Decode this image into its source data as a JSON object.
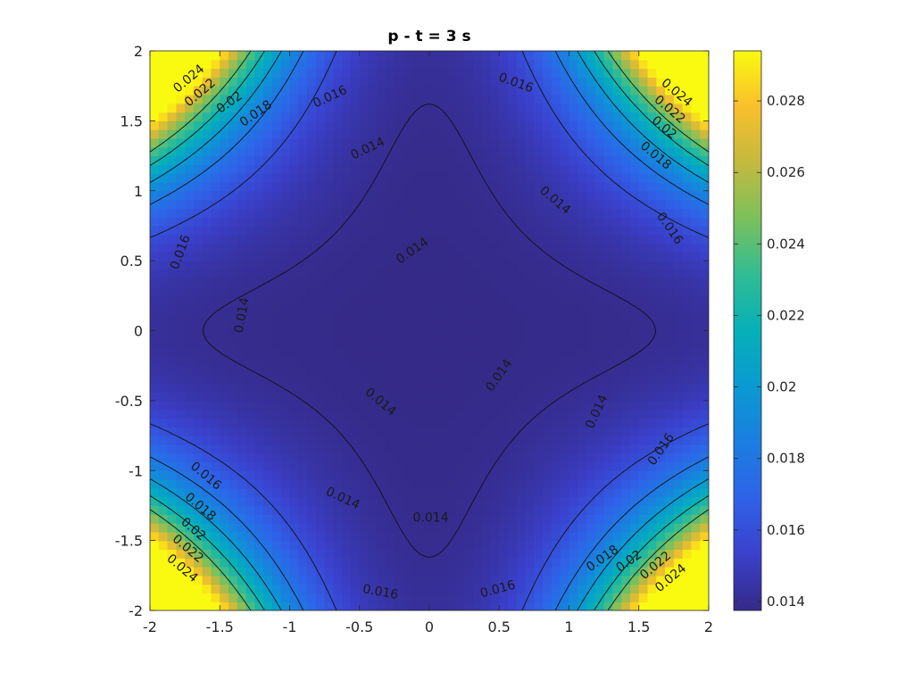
{
  "chart_data": {
    "type": "heatmap",
    "title": "p - t = 3 s",
    "xlabel": "",
    "ylabel": "",
    "xlim": [
      -2,
      2
    ],
    "ylim": [
      -2,
      2
    ],
    "x_ticks": [
      -2,
      -1.5,
      -1,
      -0.5,
      0,
      0.5,
      1,
      1.5,
      2
    ],
    "y_ticks": [
      -2,
      -1.5,
      -1,
      -0.5,
      0,
      0.5,
      1,
      1.5,
      2
    ],
    "x_tick_labels": [
      "-2",
      "-1.5",
      "-1",
      "-0.5",
      "0",
      "0.5",
      "1",
      "1.5",
      "2"
    ],
    "y_tick_labels": [
      "-2",
      "-1.5",
      "-1",
      "-0.5",
      "0",
      "0.5",
      "1",
      "1.5",
      "2"
    ],
    "colormap": "parula",
    "color_range": [
      0.01375,
      0.0294
    ],
    "colorbar": {
      "position": "right",
      "ticks": [
        0.014,
        0.016,
        0.018,
        0.02,
        0.022,
        0.024,
        0.026,
        0.028
      ],
      "tick_labels": [
        "0.014",
        "0.016",
        "0.018",
        "0.02",
        "0.022",
        "0.024",
        "0.026",
        "0.028"
      ]
    },
    "contour_levels": [
      0.014,
      0.016,
      0.018,
      0.02,
      0.022,
      0.024
    ],
    "contour_labels": [
      {
        "text": "0.024",
        "x": -1.72,
        "y": 1.8,
        "angle": -40
      },
      {
        "text": "0.022",
        "x": -1.64,
        "y": 1.7,
        "angle": -40
      },
      {
        "text": "0.02",
        "x": -1.43,
        "y": 1.63,
        "angle": -35
      },
      {
        "text": "0.018",
        "x": -1.24,
        "y": 1.55,
        "angle": -35
      },
      {
        "text": "0.016",
        "x": -0.71,
        "y": 1.67,
        "angle": -25
      },
      {
        "text": "0.016",
        "x": 0.62,
        "y": 1.77,
        "angle": 20
      },
      {
        "text": "0.024",
        "x": 1.77,
        "y": 1.7,
        "angle": 40
      },
      {
        "text": "0.022",
        "x": 1.72,
        "y": 1.58,
        "angle": 40
      },
      {
        "text": "0.02",
        "x": 1.68,
        "y": 1.45,
        "angle": 40
      },
      {
        "text": "0.018",
        "x": 1.62,
        "y": 1.25,
        "angle": 40
      },
      {
        "text": "0.014",
        "x": -0.44,
        "y": 1.3,
        "angle": -25
      },
      {
        "text": "0.014",
        "x": 0.9,
        "y": 0.93,
        "angle": 40
      },
      {
        "text": "0.016",
        "x": 1.72,
        "y": 0.73,
        "angle": 55
      },
      {
        "text": "0.016",
        "x": -1.78,
        "y": 0.56,
        "angle": -70
      },
      {
        "text": "0.014",
        "x": -0.12,
        "y": 0.57,
        "angle": -35
      },
      {
        "text": "0.014",
        "x": -1.34,
        "y": 0.11,
        "angle": -80
      },
      {
        "text": "0.014",
        "x": 0.5,
        "y": -0.32,
        "angle": -55
      },
      {
        "text": "0.014",
        "x": -0.35,
        "y": -0.51,
        "angle": 40
      },
      {
        "text": "0.014",
        "x": 1.2,
        "y": -0.58,
        "angle": -65
      },
      {
        "text": "0.016",
        "x": 1.66,
        "y": -0.85,
        "angle": -55
      },
      {
        "text": "0.016",
        "x": -1.6,
        "y": -1.04,
        "angle": 40
      },
      {
        "text": "0.018",
        "x": -1.64,
        "y": -1.26,
        "angle": 40
      },
      {
        "text": "0.02",
        "x": -1.69,
        "y": -1.42,
        "angle": 40
      },
      {
        "text": "0.022",
        "x": -1.73,
        "y": -1.56,
        "angle": 40
      },
      {
        "text": "0.024",
        "x": -1.77,
        "y": -1.7,
        "angle": 40
      },
      {
        "text": "0.014",
        "x": -0.62,
        "y": -1.2,
        "angle": 25
      },
      {
        "text": "0.014",
        "x": 0.01,
        "y": -1.34,
        "angle": 0
      },
      {
        "text": "0.016",
        "x": -0.35,
        "y": -1.87,
        "angle": 10
      },
      {
        "text": "0.016",
        "x": 0.49,
        "y": -1.85,
        "angle": -15
      },
      {
        "text": "0.018",
        "x": 1.24,
        "y": -1.63,
        "angle": -35
      },
      {
        "text": "0.02",
        "x": 1.43,
        "y": -1.65,
        "angle": -35
      },
      {
        "text": "0.022",
        "x": 1.62,
        "y": -1.68,
        "angle": -40
      },
      {
        "text": "0.024",
        "x": 1.73,
        "y": -1.77,
        "angle": -40
      }
    ]
  }
}
